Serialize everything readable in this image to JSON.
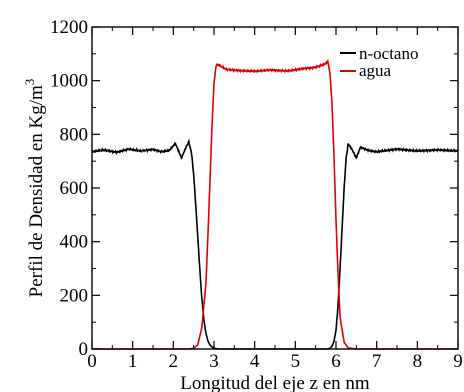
{
  "chart_data": {
    "type": "line",
    "title": "",
    "xlabel": "Longitud del eje z en nm",
    "ylabel": "Perfil de Densidad en Kg/m",
    "ylabel_superscript": "3",
    "xlim": [
      0,
      9
    ],
    "ylim": [
      0,
      1200
    ],
    "xticks": [
      "0",
      "1",
      "2",
      "3",
      "4",
      "5",
      "6",
      "7",
      "8",
      "9"
    ],
    "yticks": [
      "0",
      "200",
      "400",
      "600",
      "800",
      "1000",
      "1200"
    ],
    "grid": false,
    "legend_position": "top-right",
    "series": [
      {
        "name": "n-octano",
        "color": "#000000",
        "x": [
          0,
          0.3,
          0.6,
          0.9,
          1.2,
          1.5,
          1.7,
          1.9,
          2.05,
          2.2,
          2.3,
          2.38,
          2.45,
          2.5,
          2.55,
          2.6,
          2.65,
          2.7,
          2.75,
          2.8,
          2.85,
          2.9,
          2.95,
          3.0,
          3.1,
          3.2,
          3.5,
          4.0,
          4.5,
          5.0,
          5.5,
          5.7,
          5.8,
          5.85,
          5.9,
          5.95,
          6.0,
          6.05,
          6.1,
          6.15,
          6.2,
          6.25,
          6.3,
          6.4,
          6.5,
          6.6,
          6.8,
          7.0,
          7.5,
          8.0,
          8.5,
          9.0
        ],
        "values": [
          735,
          742,
          733,
          745,
          738,
          744,
          735,
          740,
          766,
          712,
          748,
          772,
          728,
          650,
          540,
          420,
          300,
          190,
          110,
          60,
          30,
          15,
          8,
          3,
          0,
          0,
          0,
          0,
          0,
          0,
          0,
          0,
          0,
          3,
          10,
          28,
          70,
          160,
          300,
          450,
          600,
          712,
          765,
          742,
          712,
          752,
          740,
          735,
          745,
          738,
          742,
          738
        ]
      },
      {
        "name": "agua",
        "color": "#e00000",
        "x": [
          0,
          2.2,
          2.4,
          2.5,
          2.6,
          2.7,
          2.8,
          2.85,
          2.9,
          2.95,
          3.0,
          3.05,
          3.1,
          3.3,
          3.6,
          4.0,
          4.4,
          4.8,
          5.2,
          5.5,
          5.7,
          5.8,
          5.85,
          5.9,
          5.95,
          6.0,
          6.05,
          6.1,
          6.2,
          6.3,
          6.5,
          7.0,
          9.0
        ],
        "values": [
          0,
          0,
          0,
          3,
          15,
          80,
          240,
          420,
          620,
          830,
          990,
          1055,
          1060,
          1042,
          1038,
          1035,
          1040,
          1036,
          1045,
          1050,
          1060,
          1070,
          1030,
          920,
          720,
          480,
          280,
          120,
          25,
          4,
          0,
          0,
          0
        ]
      }
    ]
  }
}
